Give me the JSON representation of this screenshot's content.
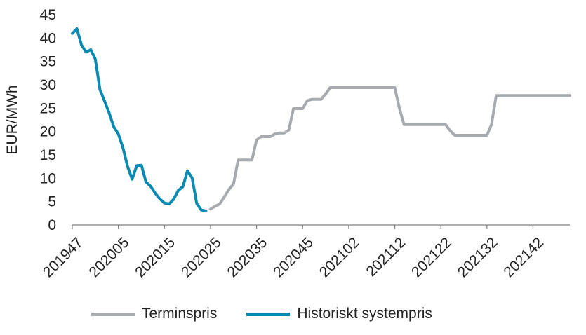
{
  "chart_data": {
    "type": "line",
    "ylabel": "EUR/MWh",
    "ylim": [
      0,
      45
    ],
    "yticks": [
      0,
      5,
      10,
      15,
      20,
      25,
      30,
      35,
      40,
      45
    ],
    "xlim_weeks": [
      0,
      108
    ],
    "x_tick_labels": [
      "201947",
      "202005",
      "202015",
      "202025",
      "202035",
      "202045",
      "202102",
      "202112",
      "202122",
      "202132",
      "202142"
    ],
    "x_tick_weeks": [
      0,
      10,
      20,
      30,
      40,
      50,
      60,
      70,
      80,
      90,
      100
    ],
    "legend_position": "bottom",
    "series": [
      {
        "name": "Historiskt systempris",
        "color": "#0a8ab0",
        "weeks": [
          0,
          1,
          2,
          3,
          4,
          5,
          6,
          7,
          8,
          9,
          10,
          11,
          12,
          13,
          14,
          15,
          16,
          17,
          18,
          19,
          20,
          21,
          22,
          23,
          24,
          25,
          26,
          27,
          28,
          29
        ],
        "values": [
          41.0,
          42.0,
          38.5,
          37.0,
          37.5,
          35.5,
          29.0,
          26.5,
          24.0,
          21.0,
          19.5,
          16.5,
          12.5,
          9.8,
          12.7,
          12.8,
          9.2,
          8.3,
          6.8,
          5.6,
          4.7,
          4.5,
          5.5,
          7.4,
          8.2,
          11.6,
          10.1,
          4.6,
          3.2,
          3.0
        ]
      },
      {
        "name": "Terminspris",
        "color": "#a7abaf",
        "weeks": [
          30,
          31,
          32,
          33,
          34,
          35,
          36,
          37,
          38,
          39,
          40,
          41,
          42,
          43,
          44,
          45,
          46,
          47,
          48,
          49,
          50,
          51,
          52,
          53,
          54,
          55,
          56,
          57,
          58,
          59,
          60,
          70,
          71,
          72,
          80,
          81,
          82,
          83,
          90,
          91,
          92,
          108
        ],
        "values": [
          3.4,
          4.0,
          4.5,
          6.0,
          7.6,
          8.8,
          13.9,
          13.9,
          13.9,
          13.9,
          18.2,
          18.9,
          18.9,
          18.9,
          19.5,
          19.7,
          19.7,
          20.3,
          24.9,
          24.9,
          24.9,
          26.6,
          26.9,
          26.9,
          26.9,
          28.1,
          29.4,
          29.4,
          29.4,
          29.4,
          29.4,
          29.4,
          25.0,
          21.5,
          21.5,
          21.5,
          20.2,
          19.2,
          19.2,
          21.5,
          27.7,
          27.7
        ]
      }
    ]
  },
  "legend": {
    "items": [
      {
        "label": "Terminspris",
        "color": "#a7abaf"
      },
      {
        "label": "Historiskt systempris",
        "color": "#0a8ab0"
      }
    ]
  }
}
